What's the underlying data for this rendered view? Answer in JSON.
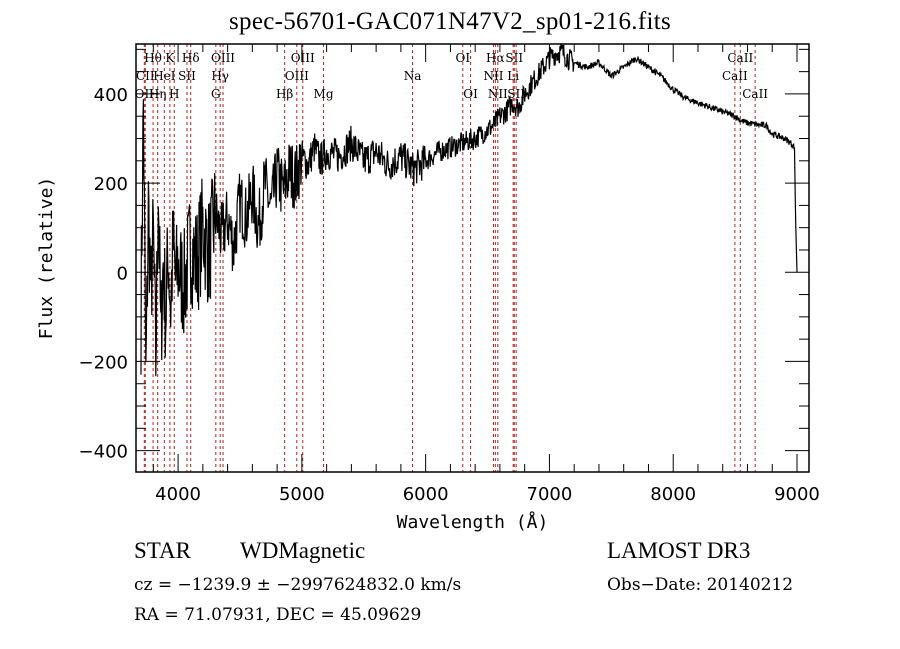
{
  "chart_data": {
    "type": "line",
    "title": "spec-56701-GAC071N47V2_sp01-216.fits",
    "xlabel": "Wavelength (Å)",
    "ylabel": "Flux (relative)",
    "xlim": [
      3660,
      9097
    ],
    "ylim": [
      -448,
      512
    ],
    "x_ticks": [
      4000,
      5000,
      6000,
      7000,
      8000,
      9000
    ],
    "x_tick_labels": [
      "4000",
      "5000",
      "6000",
      "7000",
      "8000",
      "9000"
    ],
    "y_ticks": [
      -400,
      -200,
      0,
      200,
      400
    ],
    "y_tick_labels": [
      "−400",
      "−200",
      "0",
      "200",
      "400"
    ],
    "grid": false,
    "line_color": "#000000",
    "marker_color": "#b22222",
    "series": [
      {
        "name": "flux",
        "x": [
          3700,
          3720,
          3740,
          3760,
          3780,
          3800,
          3820,
          3840,
          3860,
          3880,
          3900,
          3920,
          3940,
          3960,
          3980,
          4000,
          4050,
          4100,
          4150,
          4200,
          4250,
          4300,
          4350,
          4400,
          4450,
          4500,
          4550,
          4600,
          4650,
          4700,
          4750,
          4800,
          4850,
          4900,
          4950,
          5000,
          5050,
          5100,
          5150,
          5200,
          5300,
          5400,
          5500,
          5600,
          5700,
          5800,
          5900,
          6000,
          6100,
          6200,
          6300,
          6400,
          6500,
          6550,
          6600,
          6650,
          6700,
          6750,
          6800,
          6850,
          6900,
          6950,
          7000,
          7050,
          7100,
          7150,
          7200,
          7300,
          7400,
          7500,
          7600,
          7700,
          7750,
          7800,
          7900,
          8000,
          8100,
          8200,
          8300,
          8400,
          8500,
          8550,
          8600,
          8700,
          8750,
          8800,
          8900,
          8950,
          8980,
          8990,
          9000
        ],
        "y": [
          -100,
          380,
          -250,
          150,
          -50,
          80,
          -200,
          200,
          -150,
          20,
          -100,
          50,
          -80,
          60,
          -20,
          10,
          -30,
          60,
          20,
          100,
          40,
          130,
          80,
          120,
          60,
          160,
          120,
          180,
          100,
          200,
          140,
          220,
          180,
          230,
          210,
          260,
          240,
          280,
          250,
          270,
          260,
          290,
          250,
          270,
          240,
          260,
          230,
          250,
          270,
          280,
          290,
          300,
          320,
          330,
          350,
          360,
          380,
          370,
          400,
          420,
          440,
          460,
          480,
          490,
          495,
          480,
          470,
          460,
          470,
          440,
          460,
          480,
          470,
          460,
          440,
          410,
          390,
          380,
          370,
          360,
          350,
          340,
          335,
          330,
          330,
          310,
          300,
          290,
          280,
          100,
          0
        ]
      }
    ],
    "line_markers": [
      {
        "label": "Hθ",
        "wavelength": 3798,
        "row": 1
      },
      {
        "label": "CII",
        "wavelength": 3735,
        "row": 2
      },
      {
        "label": "OII",
        "wavelength": 3727,
        "row": 3
      },
      {
        "label": "Hη",
        "wavelength": 3835,
        "row": 3
      },
      {
        "label": "HeI",
        "wavelength": 3889,
        "row": 2
      },
      {
        "label": "K",
        "wavelength": 3934,
        "row": 1
      },
      {
        "label": "H",
        "wavelength": 3969,
        "row": 3
      },
      {
        "label": "SII",
        "wavelength": 4072,
        "row": 2
      },
      {
        "label": "Hδ",
        "wavelength": 4102,
        "row": 1
      },
      {
        "label": "Hγ",
        "wavelength": 4340,
        "row": 2
      },
      {
        "label": "G",
        "wavelength": 4305,
        "row": 3
      },
      {
        "label": "OIII",
        "wavelength": 4363,
        "row": 1
      },
      {
        "label": "Hβ",
        "wavelength": 4861,
        "row": 3
      },
      {
        "label": "OIII",
        "wavelength": 4959,
        "row": 2
      },
      {
        "label": "OIII",
        "wavelength": 5007,
        "row": 1
      },
      {
        "label": "Mg",
        "wavelength": 5175,
        "row": 3
      },
      {
        "label": "Na",
        "wavelength": 5894,
        "row": 2
      },
      {
        "label": "OI",
        "wavelength": 6300,
        "row": 1
      },
      {
        "label": "OI",
        "wavelength": 6363,
        "row": 3
      },
      {
        "label": "NII",
        "wavelength": 6548,
        "row": 2
      },
      {
        "label": "Hα",
        "wavelength": 6563,
        "row": 1
      },
      {
        "label": "NII",
        "wavelength": 6583,
        "row": 3
      },
      {
        "label": "Li",
        "wavelength": 6707,
        "row": 2
      },
      {
        "label": "SII",
        "wavelength": 6716,
        "row": 1
      },
      {
        "label": "SII",
        "wavelength": 6731,
        "row": 3
      },
      {
        "label": "CaII",
        "wavelength": 8498,
        "row": 2
      },
      {
        "label": "CaII",
        "wavelength": 8542,
        "row": 1
      },
      {
        "label": "CaII",
        "wavelength": 8662,
        "row": 3
      }
    ]
  },
  "info": {
    "object_class": "STAR",
    "subclass": "WDMagnetic",
    "survey": "LAMOST DR3",
    "redshift_line": "cz = −1239.9 ± −2997624832.0 km/s",
    "obs_date": "Obs−Date: 20140212",
    "coords": "RA =  71.07931, DEC =  45.09629"
  }
}
